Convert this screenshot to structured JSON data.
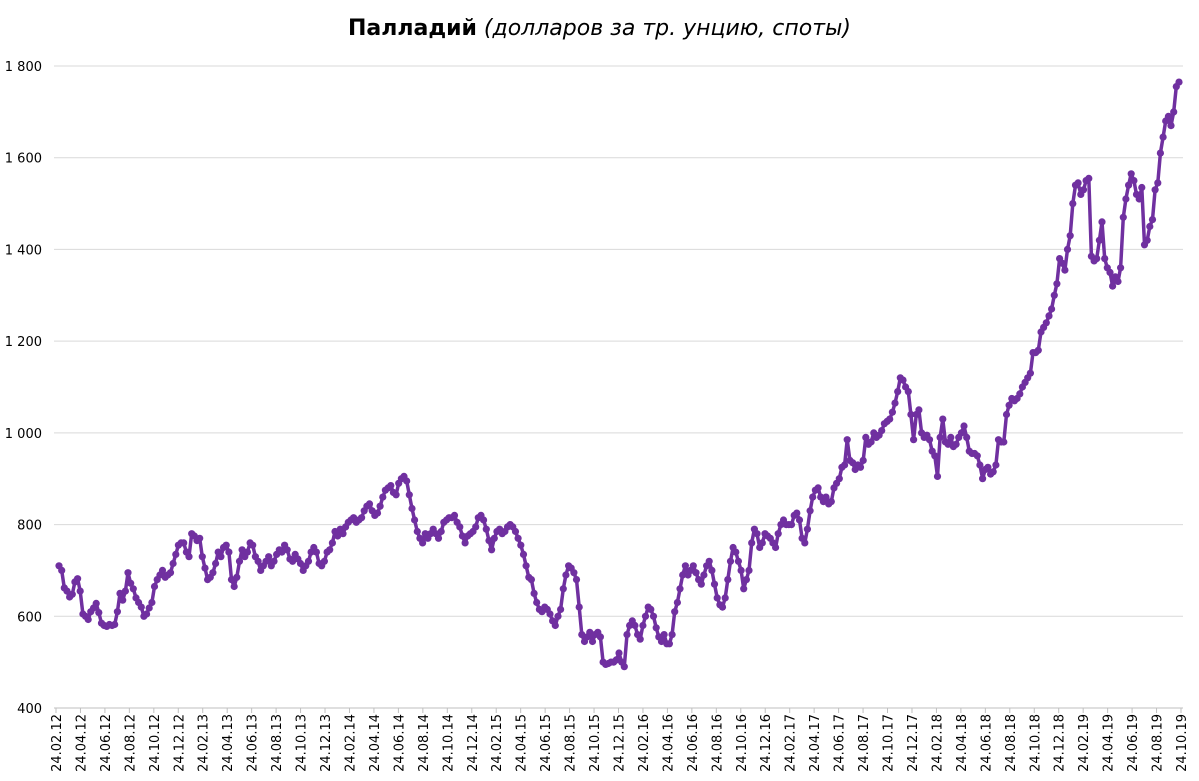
{
  "chart_data": {
    "type": "line",
    "title_main": "Палладий",
    "title_sub": "(долларов за тр. унцию, споты)",
    "ylim": [
      400,
      1800
    ],
    "y_ticks": [
      {
        "v": 400,
        "label": "400"
      },
      {
        "v": 600,
        "label": "600"
      },
      {
        "v": 800,
        "label": "800"
      },
      {
        "v": 1000,
        "label": "1 000"
      },
      {
        "v": 1200,
        "label": "1 200"
      },
      {
        "v": 1400,
        "label": "1 400"
      },
      {
        "v": 1600,
        "label": "1 600"
      },
      {
        "v": 1800,
        "label": "1 800"
      }
    ],
    "x_tick_labels": [
      "24.02.12",
      "24.04.12",
      "24.06.12",
      "24.08.12",
      "24.10.12",
      "24.12.12",
      "24.02.13",
      "24.04.13",
      "24.06.13",
      "24.08.13",
      "24.10.13",
      "24.12.13",
      "24.02.14",
      "24.04.14",
      "24.06.14",
      "24.08.14",
      "24.10.14",
      "24.12.14",
      "24.02.15",
      "24.04.15",
      "24.06.15",
      "24.08.15",
      "24.10.15",
      "24.12.15",
      "24.02.16",
      "24.04.16",
      "24.06.16",
      "24.08.16",
      "24.10.16",
      "24.12.16",
      "24.02.17",
      "24.04.17",
      "24.06.17",
      "24.08.17",
      "24.10.17",
      "24.12.17",
      "24.02.18",
      "24.04.18",
      "24.06.18",
      "24.08.18",
      "24.10.18",
      "24.12.18",
      "24.02.19",
      "24.04.19",
      "24.06.19",
      "24.08.19",
      "24.10.19"
    ],
    "grid": "horizontal",
    "legend": "none",
    "line_color": "#7030A0",
    "series": [
      {
        "values": [
          710,
          700,
          662,
          655,
          642,
          648,
          675,
          682,
          655,
          605,
          600,
          593,
          610,
          618,
          628,
          608,
          585,
          580,
          578,
          582,
          580,
          582,
          610,
          650,
          635,
          655,
          695,
          672,
          660,
          640,
          630,
          620,
          600,
          605,
          618,
          630,
          665,
          680,
          690,
          700,
          685,
          690,
          695,
          715,
          735,
          755,
          760,
          760,
          740,
          730,
          780,
          775,
          765,
          770,
          730,
          705,
          680,
          685,
          695,
          715,
          740,
          730,
          750,
          755,
          740,
          680,
          665,
          685,
          720,
          745,
          730,
          740,
          760,
          755,
          730,
          720,
          700,
          710,
          720,
          730,
          710,
          720,
          735,
          745,
          740,
          755,
          745,
          725,
          720,
          735,
          725,
          715,
          700,
          710,
          720,
          740,
          750,
          740,
          715,
          710,
          720,
          740,
          745,
          760,
          785,
          775,
          790,
          780,
          795,
          805,
          810,
          815,
          805,
          810,
          815,
          830,
          840,
          845,
          830,
          820,
          825,
          840,
          860,
          875,
          880,
          885,
          870,
          865,
          890,
          900,
          905,
          895,
          865,
          835,
          810,
          785,
          770,
          760,
          780,
          770,
          780,
          790,
          780,
          770,
          785,
          805,
          810,
          815,
          815,
          820,
          805,
          795,
          775,
          760,
          775,
          780,
          785,
          795,
          815,
          820,
          810,
          790,
          765,
          745,
          770,
          785,
          790,
          780,
          785,
          795,
          800,
          795,
          785,
          770,
          755,
          735,
          710,
          685,
          680,
          650,
          630,
          615,
          610,
          620,
          615,
          605,
          590,
          580,
          600,
          615,
          660,
          690,
          710,
          705,
          695,
          680,
          620,
          560,
          545,
          555,
          565,
          545,
          560,
          565,
          555,
          500,
          495,
          497,
          500,
          500,
          505,
          520,
          500,
          490,
          560,
          580,
          590,
          580,
          560,
          550,
          580,
          600,
          620,
          615,
          600,
          575,
          555,
          545,
          560,
          540,
          540,
          560,
          610,
          630,
          660,
          690,
          710,
          690,
          700,
          710,
          695,
          680,
          670,
          690,
          710,
          720,
          700,
          670,
          640,
          625,
          620,
          640,
          680,
          720,
          750,
          740,
          720,
          700,
          660,
          680,
          700,
          760,
          790,
          780,
          750,
          760,
          780,
          775,
          770,
          760,
          750,
          780,
          800,
          810,
          800,
          800,
          800,
          820,
          825,
          810,
          770,
          760,
          790,
          830,
          860,
          875,
          880,
          860,
          850,
          860,
          845,
          850,
          880,
          890,
          900,
          925,
          930,
          985,
          940,
          935,
          920,
          930,
          925,
          940,
          990,
          975,
          980,
          1000,
          990,
          995,
          1005,
          1020,
          1025,
          1030,
          1045,
          1065,
          1090,
          1120,
          1115,
          1100,
          1090,
          1040,
          985,
          1040,
          1050,
          1000,
          990,
          995,
          985,
          960,
          950,
          905,
          990,
          1030,
          980,
          975,
          990,
          970,
          975,
          990,
          1000,
          1015,
          990,
          960,
          955,
          955,
          950,
          930,
          900,
          920,
          925,
          910,
          915,
          930,
          985,
          980,
          980,
          1040,
          1060,
          1075,
          1070,
          1075,
          1085,
          1100,
          1110,
          1120,
          1130,
          1175,
          1175,
          1180,
          1220,
          1230,
          1240,
          1255,
          1270,
          1300,
          1325,
          1380,
          1370,
          1355,
          1400,
          1430,
          1500,
          1540,
          1545,
          1520,
          1530,
          1550,
          1555,
          1385,
          1375,
          1380,
          1420,
          1460,
          1380,
          1360,
          1350,
          1320,
          1340,
          1330,
          1360,
          1470,
          1510,
          1540,
          1565,
          1550,
          1520,
          1510,
          1535,
          1410,
          1420,
          1450,
          1465,
          1530,
          1545,
          1610,
          1645,
          1680,
          1690,
          1670,
          1700,
          1755,
          1765
        ]
      }
    ]
  }
}
